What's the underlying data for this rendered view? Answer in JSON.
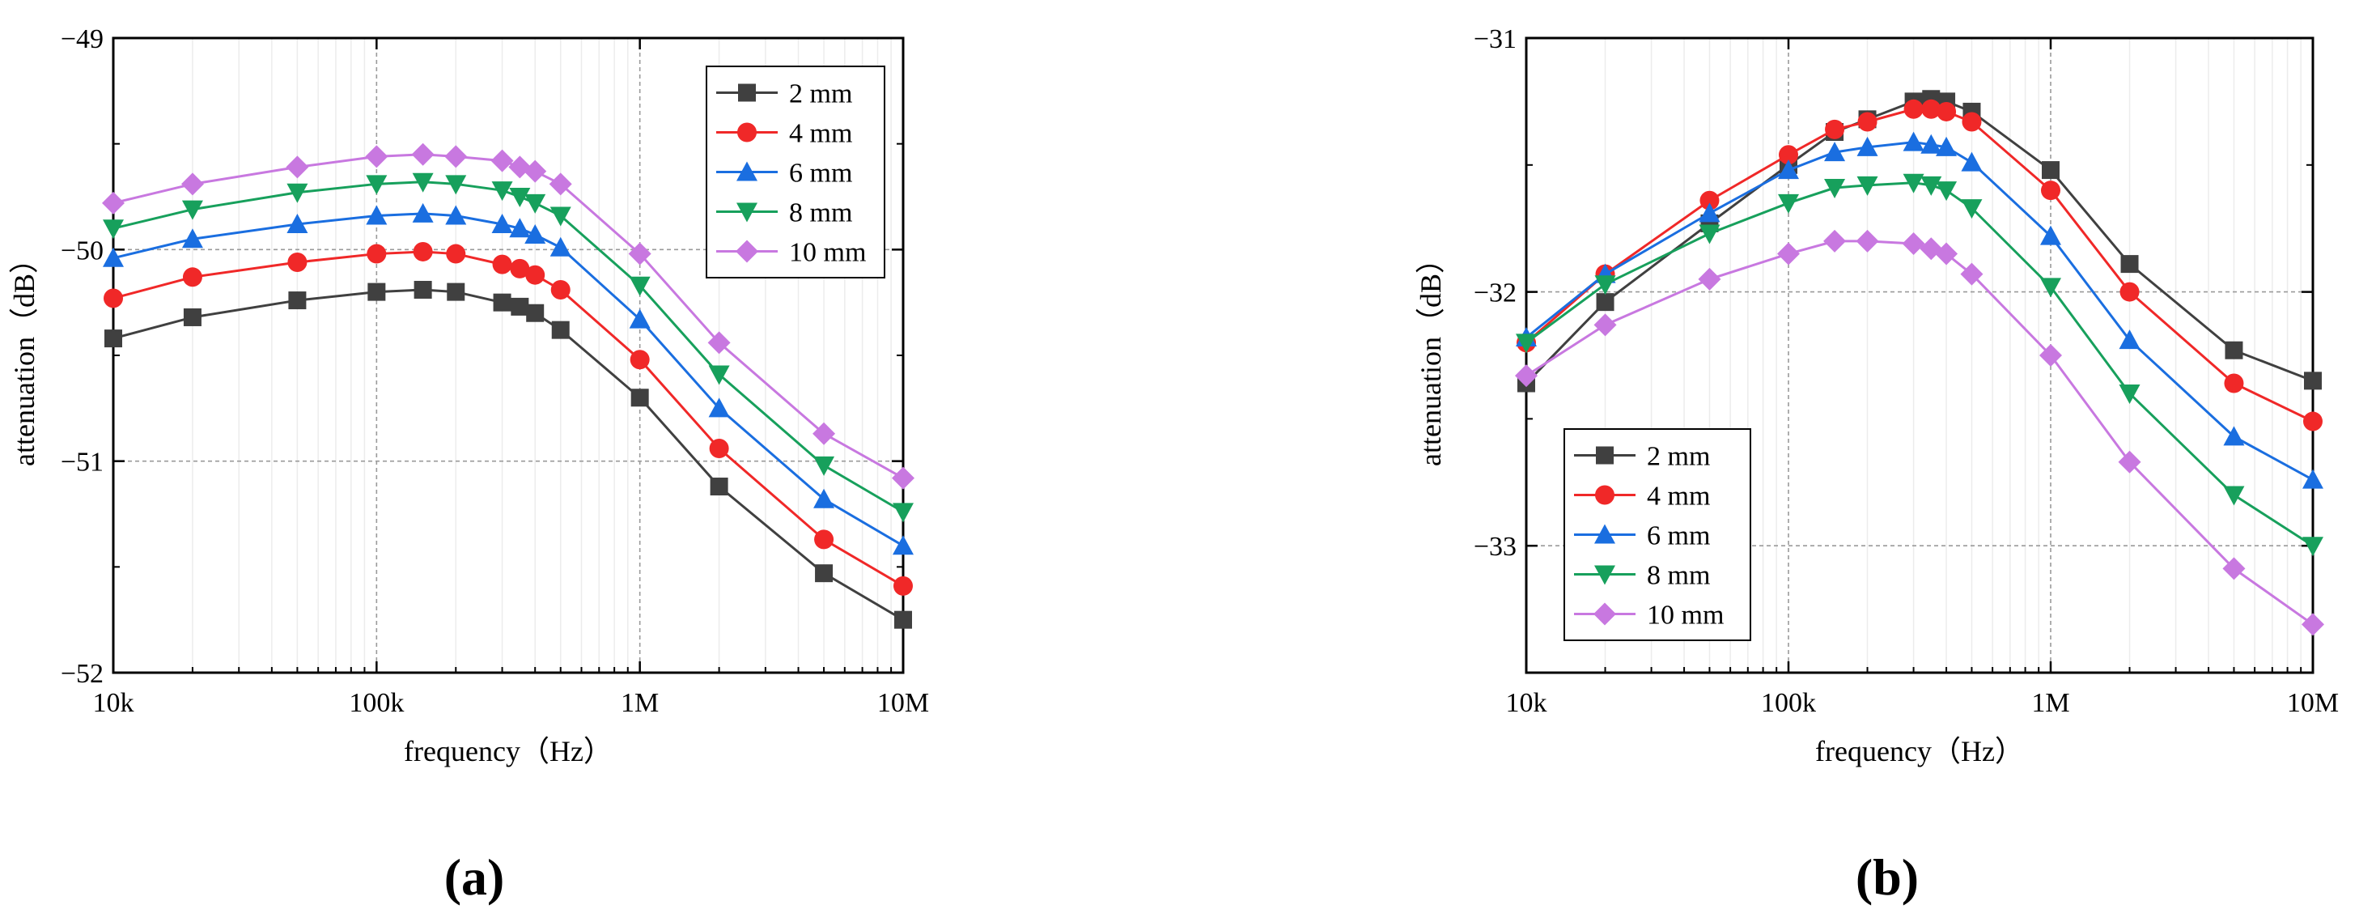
{
  "chart_data": [
    {
      "type": "line",
      "panel_label": "(a)",
      "xlabel": "frequency（Hz）",
      "ylabel": "attenuation（dB）",
      "xscale": "log",
      "xlim": [
        10000,
        10000000
      ],
      "ylim": [
        -52,
        -49
      ],
      "xticks": [
        10000,
        100000,
        1000000,
        10000000
      ],
      "xtick_labels": [
        "10k",
        "100k",
        "1M",
        "10M"
      ],
      "yticks": [
        -52,
        -51,
        -50,
        -49
      ],
      "ytick_labels": [
        "−52",
        "−51",
        "−50",
        "−49"
      ],
      "grid": true,
      "legend_position": "top-right",
      "x": [
        10000,
        20000,
        50000,
        100000,
        150000,
        200000,
        300000,
        350000,
        400000,
        500000,
        1000000,
        2000000,
        5000000,
        10000000
      ],
      "series": [
        {
          "name": "2 mm",
          "color": "#404040",
          "marker": "square",
          "values": [
            -50.42,
            -50.32,
            -50.24,
            -50.2,
            -50.19,
            -50.2,
            -50.25,
            -50.27,
            -50.3,
            -50.38,
            -50.7,
            -51.12,
            -51.53,
            -51.75
          ]
        },
        {
          "name": "4 mm",
          "color": "#f02828",
          "marker": "circle",
          "values": [
            -50.23,
            -50.13,
            -50.06,
            -50.02,
            -50.01,
            -50.02,
            -50.07,
            -50.09,
            -50.12,
            -50.19,
            -50.52,
            -50.94,
            -51.37,
            -51.59
          ]
        },
        {
          "name": "6 mm",
          "color": "#1a6ee0",
          "marker": "triangle-up",
          "values": [
            -50.04,
            -49.95,
            -49.88,
            -49.84,
            -49.83,
            -49.84,
            -49.88,
            -49.9,
            -49.93,
            -49.99,
            -50.33,
            -50.75,
            -51.18,
            -51.4
          ]
        },
        {
          "name": "8 mm",
          "color": "#17a05c",
          "marker": "triangle-down",
          "values": [
            -49.9,
            -49.81,
            -49.73,
            -49.69,
            -49.68,
            -49.69,
            -49.72,
            -49.75,
            -49.78,
            -49.84,
            -50.17,
            -50.59,
            -51.02,
            -51.24
          ]
        },
        {
          "name": "10 mm",
          "color": "#c878e0",
          "marker": "diamond",
          "values": [
            -49.78,
            -49.69,
            -49.61,
            -49.56,
            -49.55,
            -49.56,
            -49.58,
            -49.61,
            -49.63,
            -49.69,
            -50.02,
            -50.44,
            -50.87,
            -51.08
          ]
        }
      ]
    },
    {
      "type": "line",
      "panel_label": "(b)",
      "xlabel": "frequency（Hz）",
      "ylabel": "attenuation（dB）",
      "xscale": "log",
      "xlim": [
        10000,
        10000000
      ],
      "ylim": [
        -33.5,
        -31
      ],
      "xticks": [
        10000,
        100000,
        1000000,
        10000000
      ],
      "xtick_labels": [
        "10k",
        "100k",
        "1M",
        "10M"
      ],
      "yticks": [
        -33,
        -32,
        -31
      ],
      "ytick_labels": [
        "−33",
        "−32",
        "−31"
      ],
      "grid": true,
      "legend_position": "bottom-left",
      "x": [
        10000,
        20000,
        50000,
        100000,
        150000,
        200000,
        300000,
        350000,
        400000,
        500000,
        1000000,
        2000000,
        5000000,
        10000000
      ],
      "series": [
        {
          "name": "2 mm",
          "color": "#404040",
          "marker": "square",
          "values": [
            -32.36,
            -32.04,
            -31.73,
            -31.5,
            -31.37,
            -31.32,
            -31.25,
            -31.24,
            -31.25,
            -31.29,
            -31.52,
            -31.89,
            -32.23,
            -32.35
          ]
        },
        {
          "name": "4 mm",
          "color": "#f02828",
          "marker": "circle",
          "values": [
            -32.2,
            -31.93,
            -31.64,
            -31.46,
            -31.36,
            -31.33,
            -31.28,
            -31.28,
            -31.29,
            -31.33,
            -31.6,
            -32.0,
            -32.36,
            -32.51
          ]
        },
        {
          "name": "6 mm",
          "color": "#1a6ee0",
          "marker": "triangle-up",
          "values": [
            -32.18,
            -31.93,
            -31.69,
            -31.52,
            -31.45,
            -31.43,
            -31.41,
            -31.42,
            -31.43,
            -31.49,
            -31.78,
            -32.19,
            -32.57,
            -32.74
          ]
        },
        {
          "name": "8 mm",
          "color": "#17a05c",
          "marker": "triangle-down",
          "values": [
            -32.2,
            -31.97,
            -31.77,
            -31.65,
            -31.59,
            -31.58,
            -31.57,
            -31.58,
            -31.6,
            -31.67,
            -31.98,
            -32.4,
            -32.8,
            -33.0
          ]
        },
        {
          "name": "10 mm",
          "color": "#c878e0",
          "marker": "diamond",
          "values": [
            -32.33,
            -32.13,
            -31.95,
            -31.85,
            -31.8,
            -31.8,
            -31.81,
            -31.83,
            -31.85,
            -31.93,
            -32.25,
            -32.67,
            -33.09,
            -33.31
          ]
        }
      ]
    }
  ]
}
